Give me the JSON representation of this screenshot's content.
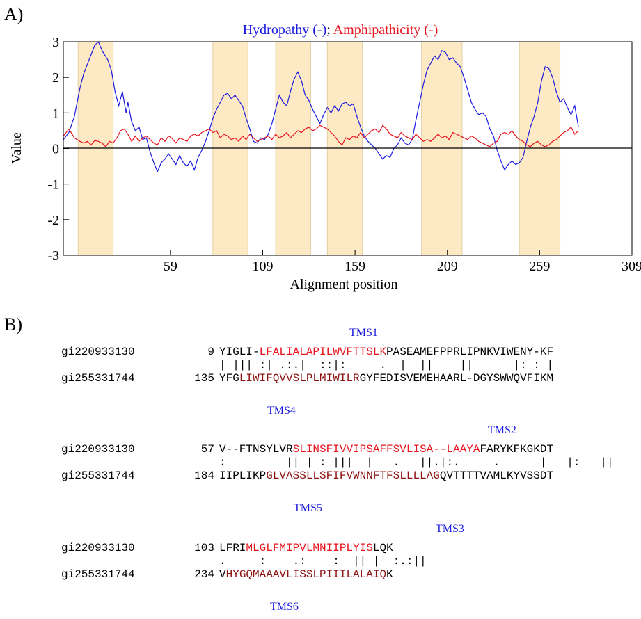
{
  "panel_labels": {
    "a": "A)",
    "b": "B)"
  },
  "chart_data": {
    "type": "line",
    "title_parts": [
      {
        "text": "Hydropathy (-)",
        "color": "#1a1ae0"
      },
      {
        "text": "; ",
        "color": "#000000"
      },
      {
        "text": "Amphipathicity (-)",
        "color": "#e8141e"
      }
    ],
    "xlabel": "Alignment position",
    "ylabel": "Value",
    "xlim": [
      1,
      309
    ],
    "ylim": [
      -3,
      3
    ],
    "xticks": [
      59,
      109,
      159,
      209,
      259,
      309
    ],
    "yticks": [
      3,
      2,
      1,
      0,
      -1,
      -2,
      -3
    ],
    "ytick_labels": [
      "3",
      "2",
      "1",
      "0",
      "-1",
      "-2",
      "-3"
    ],
    "shaded_regions": [
      [
        9,
        28
      ],
      [
        82,
        101
      ],
      [
        116,
        135
      ],
      [
        144,
        163
      ],
      [
        195,
        217
      ],
      [
        248,
        270
      ]
    ],
    "shade_color": "#fde9c4",
    "series": [
      {
        "name": "Hydropathy",
        "color": "#1a1ae0",
        "points": [
          [
            1,
            0.25
          ],
          [
            4,
            0.45
          ],
          [
            7,
            0.9
          ],
          [
            10,
            1.7
          ],
          [
            12,
            2.1
          ],
          [
            15,
            2.5
          ],
          [
            18,
            2.9
          ],
          [
            20,
            3.0
          ],
          [
            22,
            2.75
          ],
          [
            25,
            2.5
          ],
          [
            27,
            2.2
          ],
          [
            29,
            1.6
          ],
          [
            31,
            1.2
          ],
          [
            33,
            1.6
          ],
          [
            35,
            1.0
          ],
          [
            36,
            1.3
          ],
          [
            38,
            0.75
          ],
          [
            40,
            0.5
          ],
          [
            42,
            0.6
          ],
          [
            44,
            0.25
          ],
          [
            46,
            0.3
          ],
          [
            48,
            -0.1
          ],
          [
            50,
            -0.4
          ],
          [
            52,
            -0.65
          ],
          [
            54,
            -0.4
          ],
          [
            56,
            -0.3
          ],
          [
            58,
            -0.15
          ],
          [
            60,
            -0.3
          ],
          [
            62,
            -0.45
          ],
          [
            64,
            -0.2
          ],
          [
            66,
            -0.4
          ],
          [
            68,
            -0.5
          ],
          [
            70,
            -0.35
          ],
          [
            72,
            -0.6
          ],
          [
            74,
            -0.25
          ],
          [
            76,
            -0.05
          ],
          [
            78,
            0.2
          ],
          [
            80,
            0.5
          ],
          [
            82,
            0.85
          ],
          [
            84,
            1.1
          ],
          [
            86,
            1.3
          ],
          [
            88,
            1.5
          ],
          [
            90,
            1.55
          ],
          [
            92,
            1.4
          ],
          [
            94,
            1.5
          ],
          [
            96,
            1.35
          ],
          [
            98,
            1.2
          ],
          [
            100,
            0.85
          ],
          [
            102,
            0.55
          ],
          [
            104,
            0.2
          ],
          [
            106,
            0.15
          ],
          [
            108,
            0.3
          ],
          [
            110,
            0.25
          ],
          [
            112,
            0.4
          ],
          [
            114,
            0.7
          ],
          [
            116,
            1.1
          ],
          [
            118,
            1.5
          ],
          [
            120,
            1.3
          ],
          [
            122,
            1.2
          ],
          [
            124,
            1.6
          ],
          [
            126,
            1.95
          ],
          [
            128,
            2.15
          ],
          [
            130,
            1.9
          ],
          [
            132,
            1.5
          ],
          [
            134,
            1.35
          ],
          [
            136,
            1.1
          ],
          [
            138,
            0.9
          ],
          [
            140,
            0.7
          ],
          [
            142,
            0.95
          ],
          [
            144,
            1.15
          ],
          [
            146,
            1.0
          ],
          [
            148,
            1.2
          ],
          [
            150,
            1.05
          ],
          [
            152,
            1.25
          ],
          [
            154,
            1.3
          ],
          [
            156,
            1.2
          ],
          [
            158,
            1.25
          ],
          [
            160,
            0.9
          ],
          [
            162,
            0.6
          ],
          [
            164,
            0.35
          ],
          [
            166,
            0.2
          ],
          [
            168,
            0.1
          ],
          [
            170,
            0.0
          ],
          [
            172,
            -0.15
          ],
          [
            174,
            -0.3
          ],
          [
            176,
            -0.2
          ],
          [
            178,
            -0.25
          ],
          [
            180,
            0.0
          ],
          [
            182,
            0.1
          ],
          [
            184,
            0.3
          ],
          [
            186,
            0.15
          ],
          [
            188,
            0.1
          ],
          [
            190,
            0.25
          ],
          [
            192,
            0.8
          ],
          [
            194,
            1.3
          ],
          [
            196,
            1.8
          ],
          [
            198,
            2.2
          ],
          [
            200,
            2.4
          ],
          [
            202,
            2.6
          ],
          [
            204,
            2.5
          ],
          [
            206,
            2.75
          ],
          [
            208,
            2.7
          ],
          [
            210,
            2.5
          ],
          [
            212,
            2.55
          ],
          [
            214,
            2.4
          ],
          [
            216,
            2.3
          ],
          [
            218,
            2.0
          ],
          [
            220,
            1.65
          ],
          [
            222,
            1.3
          ],
          [
            224,
            1.1
          ],
          [
            226,
            0.95
          ],
          [
            228,
            1.0
          ],
          [
            230,
            0.9
          ],
          [
            232,
            0.55
          ],
          [
            234,
            0.35
          ],
          [
            236,
            -0.05
          ],
          [
            238,
            -0.35
          ],
          [
            240,
            -0.6
          ],
          [
            242,
            -0.45
          ],
          [
            244,
            -0.35
          ],
          [
            246,
            -0.45
          ],
          [
            248,
            -0.4
          ],
          [
            250,
            -0.25
          ],
          [
            252,
            0.2
          ],
          [
            254,
            0.6
          ],
          [
            256,
            0.9
          ],
          [
            258,
            1.3
          ],
          [
            260,
            1.9
          ],
          [
            262,
            2.3
          ],
          [
            264,
            2.25
          ],
          [
            266,
            2.0
          ],
          [
            268,
            1.6
          ],
          [
            270,
            1.3
          ],
          [
            272,
            1.4
          ],
          [
            274,
            1.15
          ],
          [
            276,
            0.95
          ],
          [
            278,
            1.2
          ],
          [
            280,
            0.6
          ]
        ]
      },
      {
        "name": "Amphipathicity",
        "color": "#e8141e",
        "points": [
          [
            1,
            0.35
          ],
          [
            4,
            0.55
          ],
          [
            7,
            0.3
          ],
          [
            10,
            0.2
          ],
          [
            12,
            0.15
          ],
          [
            14,
            0.2
          ],
          [
            16,
            0.1
          ],
          [
            18,
            0.22
          ],
          [
            20,
            0.2
          ],
          [
            22,
            0.15
          ],
          [
            24,
            0.05
          ],
          [
            26,
            0.2
          ],
          [
            28,
            0.15
          ],
          [
            30,
            0.3
          ],
          [
            32,
            0.5
          ],
          [
            34,
            0.55
          ],
          [
            36,
            0.4
          ],
          [
            38,
            0.2
          ],
          [
            40,
            0.35
          ],
          [
            42,
            0.2
          ],
          [
            44,
            0.3
          ],
          [
            46,
            0.35
          ],
          [
            48,
            0.25
          ],
          [
            50,
            0.15
          ],
          [
            52,
            0.1
          ],
          [
            54,
            0.3
          ],
          [
            56,
            0.2
          ],
          [
            58,
            0.35
          ],
          [
            60,
            0.28
          ],
          [
            62,
            0.15
          ],
          [
            64,
            0.3
          ],
          [
            66,
            0.25
          ],
          [
            68,
            0.2
          ],
          [
            70,
            0.35
          ],
          [
            72,
            0.4
          ],
          [
            74,
            0.35
          ],
          [
            76,
            0.45
          ],
          [
            78,
            0.5
          ],
          [
            80,
            0.55
          ],
          [
            82,
            0.45
          ],
          [
            84,
            0.5
          ],
          [
            86,
            0.3
          ],
          [
            88,
            0.4
          ],
          [
            90,
            0.35
          ],
          [
            92,
            0.25
          ],
          [
            94,
            0.3
          ],
          [
            96,
            0.2
          ],
          [
            98,
            0.35
          ],
          [
            100,
            0.25
          ],
          [
            102,
            0.4
          ],
          [
            104,
            0.3
          ],
          [
            106,
            0.2
          ],
          [
            108,
            0.25
          ],
          [
            110,
            0.3
          ],
          [
            112,
            0.35
          ],
          [
            114,
            0.25
          ],
          [
            116,
            0.4
          ],
          [
            118,
            0.3
          ],
          [
            120,
            0.35
          ],
          [
            122,
            0.45
          ],
          [
            124,
            0.3
          ],
          [
            126,
            0.4
          ],
          [
            128,
            0.5
          ],
          [
            130,
            0.45
          ],
          [
            132,
            0.55
          ],
          [
            134,
            0.6
          ],
          [
            136,
            0.5
          ],
          [
            138,
            0.55
          ],
          [
            140,
            0.65
          ],
          [
            142,
            0.6
          ],
          [
            144,
            0.55
          ],
          [
            146,
            0.45
          ],
          [
            148,
            0.35
          ],
          [
            150,
            0.2
          ],
          [
            152,
            0.1
          ],
          [
            154,
            0.3
          ],
          [
            156,
            0.25
          ],
          [
            158,
            0.35
          ],
          [
            160,
            0.3
          ],
          [
            162,
            0.45
          ],
          [
            164,
            0.3
          ],
          [
            166,
            0.4
          ],
          [
            168,
            0.5
          ],
          [
            170,
            0.55
          ],
          [
            172,
            0.45
          ],
          [
            174,
            0.65
          ],
          [
            176,
            0.55
          ],
          [
            178,
            0.4
          ],
          [
            180,
            0.35
          ],
          [
            182,
            0.3
          ],
          [
            184,
            0.45
          ],
          [
            186,
            0.35
          ],
          [
            188,
            0.3
          ],
          [
            190,
            0.25
          ],
          [
            192,
            0.4
          ],
          [
            194,
            0.3
          ],
          [
            196,
            0.2
          ],
          [
            198,
            0.25
          ],
          [
            200,
            0.2
          ],
          [
            202,
            0.3
          ],
          [
            204,
            0.4
          ],
          [
            206,
            0.3
          ],
          [
            208,
            0.35
          ],
          [
            210,
            0.25
          ],
          [
            212,
            0.45
          ],
          [
            214,
            0.4
          ],
          [
            216,
            0.35
          ],
          [
            218,
            0.3
          ],
          [
            220,
            0.25
          ],
          [
            222,
            0.35
          ],
          [
            224,
            0.3
          ],
          [
            226,
            0.2
          ],
          [
            228,
            0.15
          ],
          [
            230,
            0.1
          ],
          [
            232,
            0.05
          ],
          [
            234,
            0.15
          ],
          [
            236,
            0.2
          ],
          [
            238,
            0.4
          ],
          [
            240,
            0.45
          ],
          [
            242,
            0.4
          ],
          [
            244,
            0.5
          ],
          [
            246,
            0.35
          ],
          [
            248,
            0.25
          ],
          [
            250,
            0.2
          ],
          [
            252,
            0.1
          ],
          [
            254,
            0.05
          ],
          [
            256,
            0.15
          ],
          [
            258,
            0.2
          ],
          [
            260,
            0.1
          ],
          [
            262,
            0.05
          ],
          [
            264,
            0.1
          ],
          [
            266,
            0.2
          ],
          [
            268,
            0.25
          ],
          [
            270,
            0.35
          ],
          [
            272,
            0.45
          ],
          [
            274,
            0.5
          ],
          [
            276,
            0.6
          ],
          [
            278,
            0.4
          ],
          [
            280,
            0.5
          ]
        ]
      }
    ]
  },
  "alignment": {
    "blocks": [
      {
        "tms_top": "TMS1",
        "tms_bottom": "TMS4",
        "seq1": {
          "name": "gi220933130",
          "start": "9",
          "pre": "YIGLI-",
          "hl": "LFALIALAPILWVFTTSLK",
          "post": "PASEAMEFPPRLIPNKVIWENY-KF"
        },
        "match": "| ||| :| .:.|  ::|:     .  |  ||    ||      |: : |",
        "seq2": {
          "name": "gi255331744",
          "start": "135",
          "pre": "YFG",
          "hl": "LIWIFQVVSLPLMIWILR",
          "post": "GYFEDISVEMEHAARL-DGYSWWQVFIKM"
        }
      },
      {
        "tms_top": "TMS2",
        "tms_bottom": "TMS5",
        "seq1": {
          "name": "gi220933130",
          "start": "57",
          "pre": "V--FTNSYLVR",
          "hl": "SLINSFIVVIPSAFFSVLISA--LAAYA",
          "post": "FARYKFKGKDT"
        },
        "match": ":         || | : |||  |   .   ||.|:.     .      |   |:   ||",
        "seq2": {
          "name": "gi255331744",
          "start": "184",
          "pre": "IIPLIKP",
          "hl": "GLVASSLLSFIFVWNNFTFSLLLLAG",
          "post": "QVTTTTVAMLKYVSSDT"
        }
      },
      {
        "tms_top": "TMS3",
        "tms_bottom": "TMS6",
        "seq1": {
          "name": "gi220933130",
          "start": "103",
          "pre": "LFRI",
          "hl": "MLGLFMIPVLMNIIPLYIS",
          "post": "LQK"
        },
        "match": ".     :    .:    :  || |  :.:||",
        "seq2": {
          "name": "gi255331744",
          "start": "234",
          "pre": "V",
          "hl": "HYGQMAAAVLISSLPIIILALAIQ",
          "post": "K"
        }
      }
    ]
  }
}
